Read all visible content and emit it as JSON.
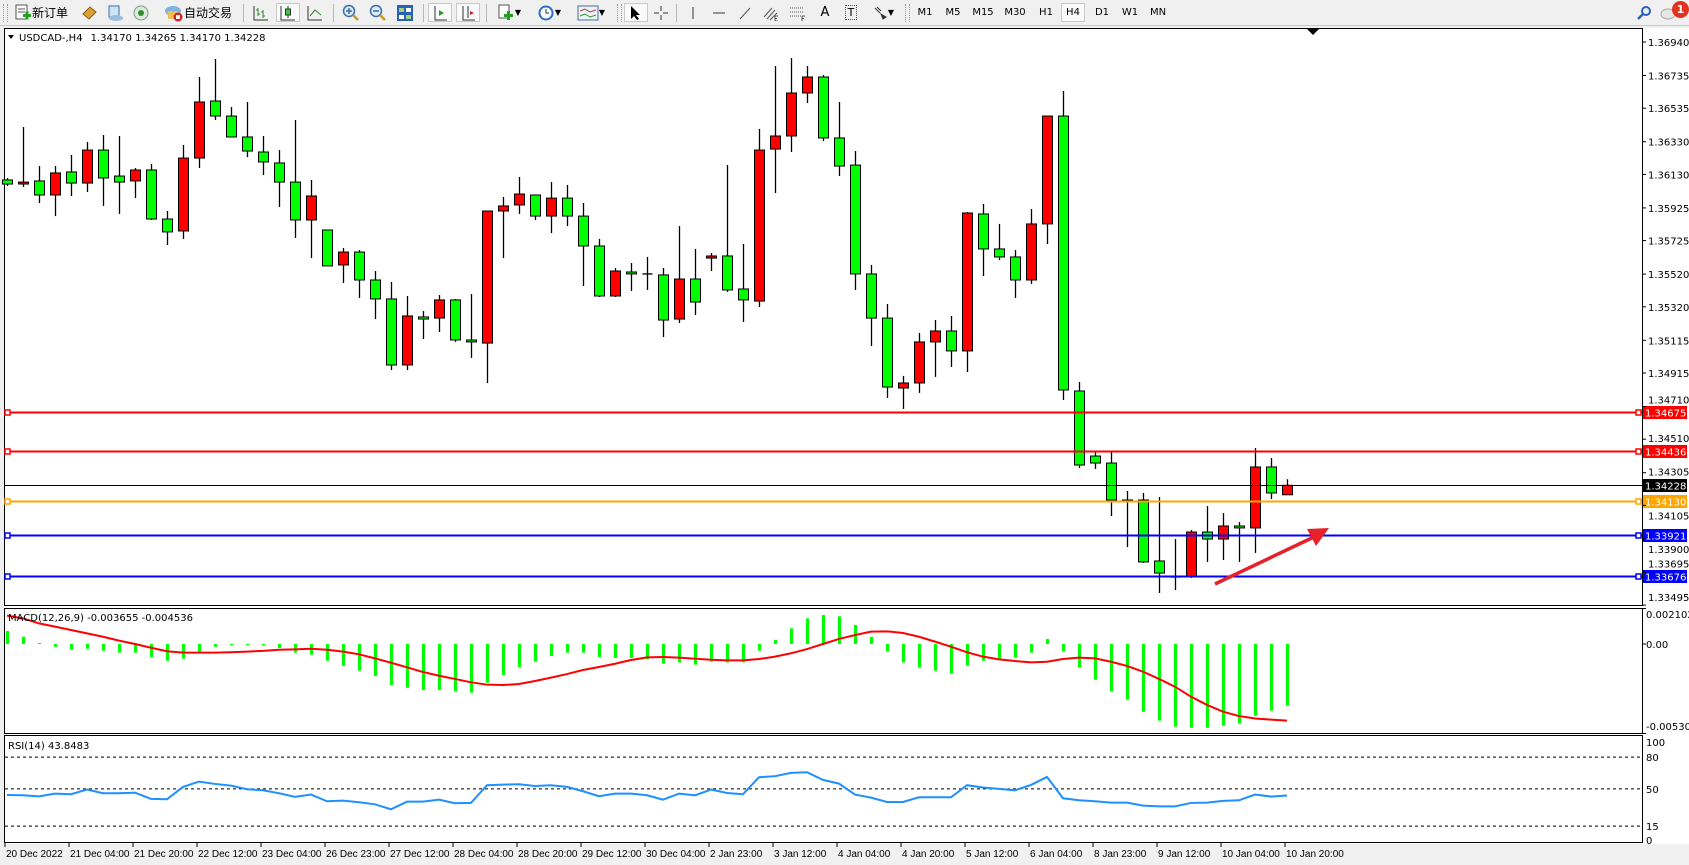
{
  "toolbar": {
    "new_order": "新订单",
    "auto_trading": "自动交易",
    "timeframes": [
      "M1",
      "M5",
      "M15",
      "M30",
      "H1",
      "H4",
      "D1",
      "W1",
      "MN"
    ],
    "active_timeframe": "H4",
    "drawing_tools": {
      "text": "A",
      "label": "T"
    },
    "notification_count": "1"
  },
  "chart": {
    "header_arrow": "▼",
    "symbol": "USDCAD-,H4",
    "ohlc": "1.34170 1.34265 1.34170 1.34228"
  },
  "colors": {
    "bull_candle": "#ff0000",
    "bear_candle": "#00ff00",
    "macd_histogram": "#00ff00",
    "macd_signal": "#ff0000",
    "rsi_line": "#1e90ff",
    "annotation_arrow": "#e8202a"
  },
  "chart_data": {
    "type": "candlestick",
    "candle_format": [
      "open",
      "high",
      "low",
      "close"
    ],
    "candles": [
      [
        1.36096,
        1.36108,
        1.36059,
        1.36071
      ],
      [
        1.36071,
        1.3642,
        1.36053,
        1.36083
      ],
      [
        1.3609,
        1.36181,
        1.35955,
        1.36004
      ],
      [
        1.36004,
        1.36181,
        1.35875,
        1.36139
      ],
      [
        1.36145,
        1.36249,
        1.35998,
        1.36077
      ],
      [
        1.36077,
        1.36328,
        1.36022,
        1.36279
      ],
      [
        1.36279,
        1.36371,
        1.35937,
        1.36108
      ],
      [
        1.3612,
        1.36365,
        1.35888,
        1.36083
      ],
      [
        1.3609,
        1.36169,
        1.35985,
        1.36157
      ],
      [
        1.36157,
        1.36194,
        1.35851,
        1.35857
      ],
      [
        1.35857,
        1.35906,
        1.35698,
        1.35778
      ],
      [
        1.35784,
        1.3631,
        1.35735,
        1.3623
      ],
      [
        1.3623,
        1.36726,
        1.36169,
        1.36573
      ],
      [
        1.36579,
        1.36836,
        1.36463,
        1.36487
      ],
      [
        1.36487,
        1.36542,
        1.36359,
        1.36359
      ],
      [
        1.36359,
        1.36573,
        1.36236,
        1.36273
      ],
      [
        1.36267,
        1.36365,
        1.36126,
        1.36206
      ],
      [
        1.362,
        1.36279,
        1.35931,
        1.36083
      ],
      [
        1.36083,
        1.36463,
        1.35741,
        1.35851
      ],
      [
        1.35851,
        1.36096,
        1.35618,
        1.35998
      ],
      [
        1.3579,
        1.3579,
        1.3557,
        1.3557
      ],
      [
        1.35576,
        1.3568,
        1.35466,
        1.35655
      ],
      [
        1.35655,
        1.35667,
        1.35374,
        1.35484
      ],
      [
        1.35484,
        1.35539,
        1.35245,
        1.35368
      ],
      [
        1.35368,
        1.35472,
        1.34933,
        1.34964
      ],
      [
        1.34964,
        1.35386,
        1.34933,
        1.35264
      ],
      [
        1.35258,
        1.35294,
        1.35123,
        1.35245
      ],
      [
        1.35251,
        1.35392,
        1.35166,
        1.35362
      ],
      [
        1.35362,
        1.35368,
        1.35105,
        1.35117
      ],
      [
        1.35117,
        1.35398,
        1.35007,
        1.35105
      ],
      [
        1.35098,
        1.35906,
        1.34854,
        1.35906
      ],
      [
        1.35906,
        1.35992,
        1.35618,
        1.35937
      ],
      [
        1.35943,
        1.36114,
        1.35888,
        1.3601
      ],
      [
        1.36004,
        1.36004,
        1.35851,
        1.35875
      ],
      [
        1.35875,
        1.36083,
        1.35771,
        1.35985
      ],
      [
        1.35985,
        1.36065,
        1.35814,
        1.35875
      ],
      [
        1.35875,
        1.35955,
        1.35447,
        1.35692
      ],
      [
        1.35692,
        1.35735,
        1.3538,
        1.35386
      ],
      [
        1.35386,
        1.35557,
        1.3538,
        1.35539
      ],
      [
        1.35533,
        1.35588,
        1.35417,
        1.35521
      ],
      [
        1.35521,
        1.35625,
        1.35423,
        1.35521
      ],
      [
        1.35515,
        1.35557,
        1.35135,
        1.35239
      ],
      [
        1.35245,
        1.35814,
        1.35221,
        1.3549
      ],
      [
        1.3549,
        1.35674,
        1.3527,
        1.35349
      ],
      [
        1.35618,
        1.35649,
        1.35539,
        1.35631
      ],
      [
        1.35631,
        1.36187,
        1.35411,
        1.35423
      ],
      [
        1.35429,
        1.35704,
        1.35227,
        1.35362
      ],
      [
        1.35355,
        1.36408,
        1.35319,
        1.36279
      ],
      [
        1.36285,
        1.36793,
        1.36016,
        1.36365
      ],
      [
        1.36365,
        1.36842,
        1.36267,
        1.36628
      ],
      [
        1.36628,
        1.36793,
        1.36567,
        1.36726
      ],
      [
        1.36726,
        1.36738,
        1.36334,
        1.36353
      ],
      [
        1.36353,
        1.36573,
        1.3612,
        1.36181
      ],
      [
        1.36187,
        1.36273,
        1.35423,
        1.35521
      ],
      [
        1.35521,
        1.35576,
        1.3508,
        1.35251
      ],
      [
        1.35251,
        1.35337,
        1.34762,
        1.34829
      ],
      [
        1.34823,
        1.34897,
        1.34695,
        1.34854
      ],
      [
        1.34854,
        1.3516,
        1.34793,
        1.35105
      ],
      [
        1.35105,
        1.35239,
        1.34891,
        1.35172
      ],
      [
        1.35172,
        1.35264,
        1.34952,
        1.3505
      ],
      [
        1.3505,
        1.359,
        1.34921,
        1.35894
      ],
      [
        1.35888,
        1.35949,
        1.35508,
        1.35674
      ],
      [
        1.35674,
        1.35827,
        1.35606,
        1.35625
      ],
      [
        1.35625,
        1.35667,
        1.35374,
        1.35484
      ],
      [
        1.35484,
        1.35918,
        1.3546,
        1.35827
      ],
      [
        1.35827,
        1.36487,
        1.35704,
        1.36487
      ],
      [
        1.36487,
        1.3664,
        1.3475,
        1.34811
      ],
      [
        1.34805,
        1.3486,
        1.34334,
        1.34352
      ],
      [
        1.34407,
        1.34438,
        1.34328,
        1.34364
      ],
      [
        1.34364,
        1.34438,
        1.3404,
        1.34138
      ],
      [
        1.34138,
        1.34193,
        1.3385,
        1.3413
      ],
      [
        1.34138,
        1.34181,
        1.33753,
        1.33759
      ],
      [
        1.33765,
        1.34156,
        1.33569,
        1.33691
      ],
      [
        1.33667,
        1.33899,
        1.33587,
        1.33667
      ],
      [
        1.33667,
        1.33954,
        1.33661,
        1.33942
      ],
      [
        1.33942,
        1.34101,
        1.33759,
        1.33899
      ],
      [
        1.33899,
        1.34058,
        1.33771,
        1.33979
      ],
      [
        1.33979,
        1.34003,
        1.33759,
        1.33967
      ],
      [
        1.33967,
        1.34456,
        1.33814,
        1.3434
      ],
      [
        1.3434,
        1.34395,
        1.34144,
        1.34181
      ],
      [
        1.3417,
        1.34265,
        1.3417,
        1.34228
      ]
    ],
    "price_axis": [
      "1.36940",
      "1.36735",
      "1.36535",
      "1.36330",
      "1.36130",
      "1.35925",
      "1.35725",
      "1.35520",
      "1.35320",
      "1.35115",
      "1.34915",
      "1.34710",
      "1.34510",
      "1.34305",
      "1.34105",
      "1.33900",
      "1.33695",
      "1.33495"
    ],
    "price_range": [
      1.33495,
      1.3694
    ],
    "grid": false,
    "horizontal_lines": [
      {
        "price": "1.34675",
        "color": "#ff0000",
        "kind": "drawn"
      },
      {
        "price": "1.34436",
        "color": "#ff0000",
        "kind": "drawn"
      },
      {
        "price": "1.34228",
        "color": "#000000",
        "kind": "bid"
      },
      {
        "price": "1.34130",
        "color": "#ffa500",
        "kind": "drawn"
      },
      {
        "price": "1.33921",
        "color": "#0000ff",
        "kind": "drawn"
      },
      {
        "price": "1.33676",
        "color": "#0000ff",
        "kind": "drawn"
      }
    ],
    "time_axis": [
      "20 Dec 2022",
      "21 Dec 04:00",
      "21 Dec 20:00",
      "22 Dec 12:00",
      "23 Dec 04:00",
      "26 Dec 23:00",
      "27 Dec 12:00",
      "28 Dec 04:00",
      "28 Dec 20:00",
      "29 Dec 12:00",
      "30 Dec 04:00",
      "2 Jan 23:00",
      "3 Jan 12:00",
      "4 Jan 04:00",
      "4 Jan 20:00",
      "5 Jan 12:00",
      "6 Jan 04:00",
      "8 Jan 23:00",
      "9 Jan 12:00",
      "10 Jan 04:00",
      "10 Jan 20:00"
    ],
    "macd": {
      "label": "MACD(12,26,9) -0.003655 -0.004536",
      "axis": [
        "0.002102",
        "0.00",
        "-0.005303"
      ],
      "range": [
        -0.005303,
        0.002102
      ],
      "histogram": [
        0.00077,
        0.00043,
        6e-05,
        -0.00016,
        -0.00034,
        -0.00028,
        -0.00039,
        -0.00051,
        -0.00051,
        -0.00077,
        -0.00099,
        -0.00087,
        -0.00051,
        -0.00016,
        -4e-05,
        -4e-05,
        -8e-05,
        -0.00024,
        -0.00051,
        -0.00063,
        -0.00099,
        -0.0013,
        -0.00158,
        -0.0019,
        -0.00243,
        -0.00259,
        -0.00273,
        -0.00273,
        -0.00282,
        -0.00288,
        -0.00229,
        -0.00184,
        -0.00136,
        -0.00105,
        -0.00071,
        -0.00051,
        -0.00051,
        -0.00077,
        -0.00083,
        -0.00083,
        -0.00091,
        -0.00117,
        -0.00109,
        -0.00122,
        -0.00105,
        -0.00109,
        -0.00109,
        -0.00039,
        0.00024,
        0.00093,
        0.00152,
        0.00172,
        0.00164,
        0.00113,
        0.00043,
        -0.00045,
        -0.00109,
        -0.0014,
        -0.00158,
        -0.00176,
        -0.00128,
        -0.00099,
        -0.00089,
        -0.00081,
        -0.00051,
        0.0003,
        -0.00045,
        -0.0014,
        -0.00211,
        -0.00282,
        -0.0033,
        -0.00401,
        -0.00454,
        -0.0049,
        -0.00496,
        -0.00496,
        -0.00484,
        -0.00472,
        -0.00425,
        -0.00395,
        -0.003655
      ],
      "signal": [
        0.00168,
        0.00152,
        0.00122,
        0.00103,
        0.00083,
        0.00063,
        0.00043,
        0.0002,
        0.0,
        -0.00022,
        -0.00043,
        -0.00051,
        -0.00051,
        -0.00051,
        -0.00049,
        -0.00045,
        -0.00041,
        -0.00034,
        -0.00032,
        -0.00028,
        -0.00034,
        -0.00045,
        -0.00061,
        -0.00085,
        -0.00111,
        -0.00138,
        -0.00166,
        -0.00188,
        -0.00207,
        -0.00227,
        -0.00241,
        -0.00243,
        -0.00237,
        -0.00219,
        -0.00199,
        -0.00178,
        -0.00154,
        -0.00136,
        -0.00117,
        -0.00095,
        -0.00079,
        -0.00077,
        -0.00081,
        -0.00087,
        -0.00093,
        -0.00097,
        -0.00097,
        -0.00089,
        -0.00075,
        -0.00055,
        -0.0003,
        0.0,
        0.0003,
        0.00053,
        0.00073,
        0.00075,
        0.00065,
        0.00043,
        0.00014,
        -0.00016,
        -0.00049,
        -0.00075,
        -0.00091,
        -0.00101,
        -0.00109,
        -0.00105,
        -0.00089,
        -0.00081,
        -0.00085,
        -0.00105,
        -0.0013,
        -0.00164,
        -0.00207,
        -0.00253,
        -0.00312,
        -0.00361,
        -0.00401,
        -0.00427,
        -0.00441,
        -0.00448,
        -0.004536
      ]
    },
    "rsi": {
      "label": "RSI(14) 43.8483",
      "axis": [
        "100",
        "80",
        "50",
        "15",
        "0"
      ],
      "levels": [
        80,
        50,
        15
      ],
      "range": [
        0,
        100
      ],
      "values": [
        44.3,
        44.0,
        43.0,
        45.6,
        45.0,
        49.4,
        45.9,
        45.9,
        46.5,
        40.6,
        40.3,
        51.9,
        56.9,
        54.7,
        53.1,
        49.7,
        48.7,
        45.9,
        42.5,
        44.7,
        38.4,
        39.0,
        37.4,
        35.5,
        30.8,
        38.0,
        38.0,
        39.9,
        36.5,
        36.8,
        53.5,
        54.1,
        54.4,
        52.8,
        53.5,
        51.9,
        47.8,
        43.1,
        45.6,
        45.6,
        44.0,
        39.9,
        45.6,
        44.0,
        49.4,
        46.2,
        45.0,
        61.0,
        62.0,
        65.1,
        65.7,
        58.5,
        55.0,
        44.7,
        41.8,
        37.7,
        37.7,
        42.1,
        42.1,
        42.1,
        53.5,
        51.3,
        50.0,
        48.7,
        53.8,
        61.3,
        41.2,
        39.3,
        38.4,
        37.1,
        37.1,
        34.3,
        33.6,
        33.6,
        36.8,
        37.1,
        38.7,
        39.3,
        44.7,
        42.8,
        43.85
      ]
    }
  }
}
